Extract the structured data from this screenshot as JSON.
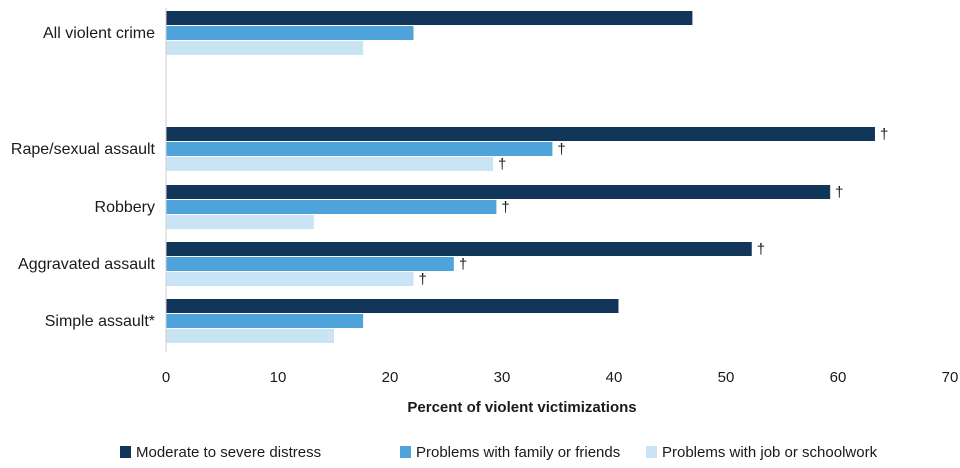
{
  "chart_data": {
    "type": "bar",
    "orientation": "horizontal",
    "categories": [
      "All violent crime",
      "Rape/sexual assault",
      "Robbery",
      "Aggravated assault",
      "Simple assault*"
    ],
    "series": [
      {
        "name": "Moderate to severe distress",
        "values": [
          47,
          63.3,
          59.3,
          52.3,
          40.4
        ],
        "flags": [
          "",
          "†",
          "†",
          "†",
          ""
        ],
        "color": "#12365a"
      },
      {
        "name": "Problems with family or friends",
        "values": [
          22.1,
          34.5,
          29.5,
          25.7,
          17.6
        ],
        "flags": [
          "",
          "†",
          "†",
          "†",
          ""
        ],
        "color": "#4fa3db"
      },
      {
        "name": "Problems with job or schoolwork",
        "values": [
          17.6,
          29.2,
          13.2,
          22.1,
          15.0
        ],
        "flags": [
          "",
          "†",
          "",
          "†",
          ""
        ],
        "color": "#c9e4f4"
      }
    ],
    "xlim": [
      0,
      70
    ],
    "xticks": [
      "0",
      "10",
      "20",
      "30",
      "40",
      "50",
      "60",
      "70"
    ],
    "xlabel": "Percent of violent victimizations",
    "ylabel": "",
    "title": "",
    "grid": false,
    "legend": "bottom"
  }
}
